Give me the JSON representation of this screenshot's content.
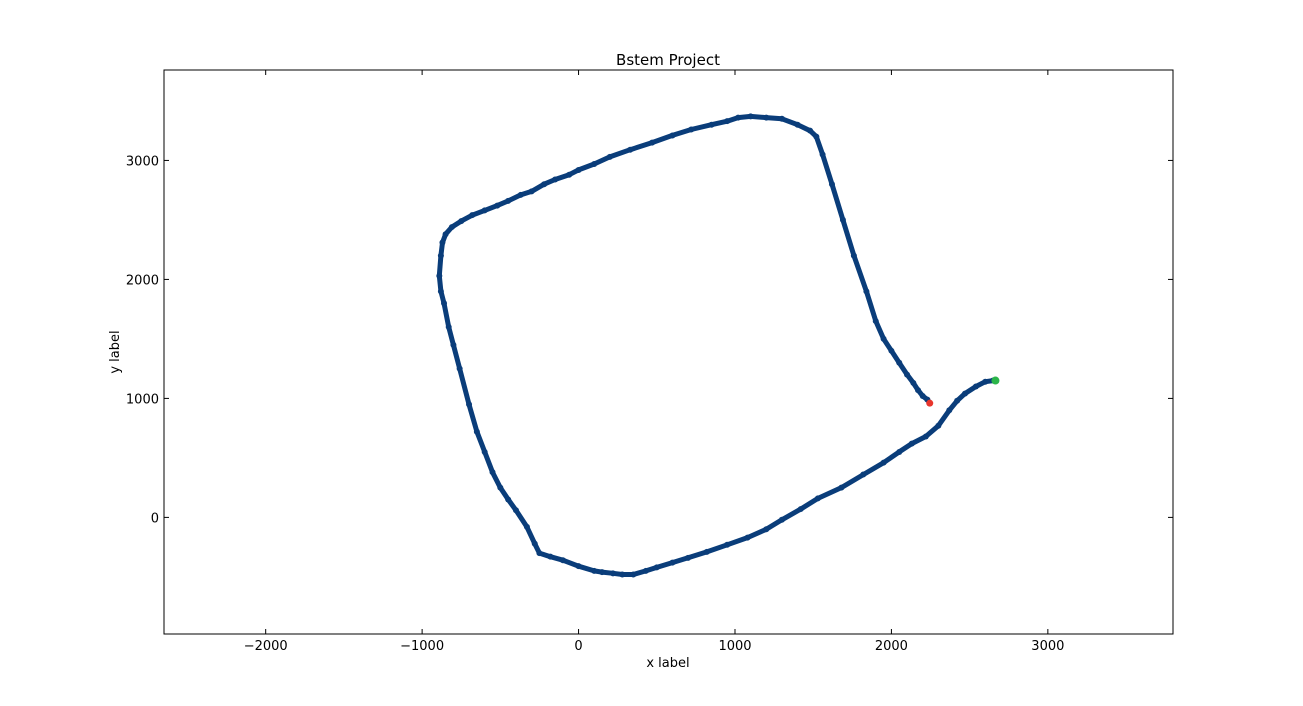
{
  "chart_data": {
    "type": "scatter",
    "title": "Bstem Project",
    "xlabel": "x label",
    "ylabel": "y label",
    "xlim": [
      -2650,
      3800
    ],
    "ylim": [
      -980,
      3760
    ],
    "xticks": [
      -2000,
      -1000,
      0,
      1000,
      2000,
      3000
    ],
    "xtick_labels": [
      "−2000",
      "−1000",
      "0",
      "1000",
      "2000",
      "3000"
    ],
    "yticks": [
      0,
      1000,
      2000,
      3000
    ],
    "ytick_labels": [
      "0",
      "1000",
      "2000",
      "3000"
    ],
    "grid": false,
    "series": [
      {
        "color": "#0a3d7a",
        "x": [
          2650,
          2600,
          2540,
          2470,
          2420,
          2370,
          2300,
          2220,
          2130,
          2050,
          1950,
          1820,
          1680,
          1530,
          1420,
          1300,
          1200,
          1080,
          950,
          820,
          700,
          600,
          500,
          430,
          350,
          280,
          220,
          150,
          100,
          0,
          -100,
          -180,
          -250,
          -280,
          -330,
          -400,
          -450,
          -500,
          -550,
          -600,
          -650,
          -700,
          -760,
          -800,
          -830,
          -860,
          -880,
          -890,
          -880,
          -870,
          -850,
          -810,
          -750,
          -680,
          -600,
          -520,
          -450,
          -370,
          -300,
          -220,
          -150,
          -60,
          0,
          100,
          200,
          330,
          470,
          600,
          720,
          850,
          950,
          1020,
          1100,
          1200,
          1300,
          1400,
          1480,
          1520,
          1560,
          1620,
          1690,
          1760,
          1840,
          1900,
          1950,
          2000,
          2050,
          2100,
          2140,
          2170,
          2200,
          2230,
          2245
        ],
        "y": [
          1150,
          1140,
          1100,
          1040,
          980,
          900,
          770,
          680,
          620,
          550,
          460,
          360,
          250,
          160,
          70,
          -20,
          -100,
          -170,
          -230,
          -290,
          -340,
          -380,
          -420,
          -450,
          -480,
          -480,
          -470,
          -460,
          -450,
          -410,
          -360,
          -330,
          -300,
          -220,
          -80,
          60,
          150,
          250,
          380,
          550,
          720,
          950,
          1250,
          1450,
          1600,
          1800,
          1900,
          2030,
          2200,
          2310,
          2380,
          2440,
          2490,
          2540,
          2580,
          2620,
          2660,
          2710,
          2740,
          2800,
          2840,
          2880,
          2920,
          2970,
          3030,
          3090,
          3150,
          3210,
          3260,
          3300,
          3330,
          3360,
          3370,
          3360,
          3350,
          3300,
          3250,
          3200,
          3050,
          2800,
          2500,
          2200,
          1900,
          1650,
          1500,
          1400,
          1300,
          1200,
          1130,
          1070,
          1020,
          990,
          960
        ]
      },
      {
        "color": "#e8352c",
        "x": [
          2245
        ],
        "y": [
          960
        ]
      },
      {
        "color": "#2bb54a",
        "x": [
          2665
        ],
        "y": [
          1150
        ]
      }
    ]
  }
}
